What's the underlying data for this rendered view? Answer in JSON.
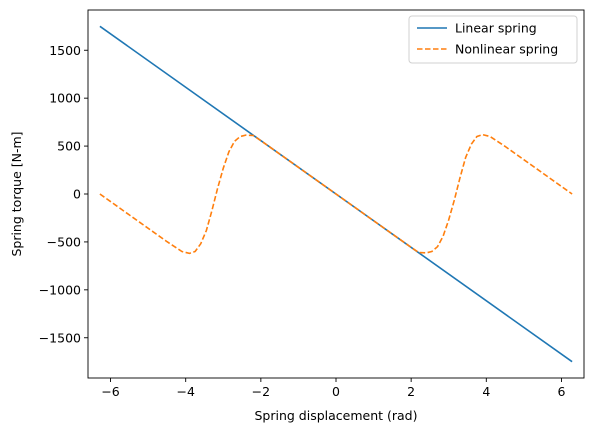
{
  "chart_data": {
    "type": "line",
    "title": "",
    "xlabel": "Spring displacement (rad)",
    "ylabel": "Spring torque [N-m]",
    "xlim": [
      -6.6,
      6.6
    ],
    "ylim": [
      -1920,
      1920
    ],
    "xticks": [
      -6,
      -4,
      -2,
      0,
      2,
      4,
      6
    ],
    "xtick_labels": [
      "−6",
      "−4",
      "−2",
      "0",
      "2",
      "4",
      "6"
    ],
    "yticks": [
      -1500,
      -1000,
      -500,
      0,
      500,
      1000,
      1500
    ],
    "ytick_labels": [
      "−1500",
      "−1000",
      "−500",
      "0",
      "500",
      "1000",
      "1500"
    ],
    "grid": false,
    "legend_position": "top-right",
    "series": [
      {
        "name": "Linear spring",
        "color": "#1f77b4",
        "style": "solid",
        "x": [
          -6.283,
          6.283
        ],
        "y": [
          1750,
          -1750
        ]
      },
      {
        "name": "Nonlinear spring",
        "color": "#ff7f0e",
        "style": "dashed",
        "x": [
          -6.283,
          -5.5,
          -4.5,
          -4.1,
          -3.9,
          -3.75,
          -3.6,
          -3.45,
          -3.3,
          -3.15,
          -3.0,
          -2.85,
          -2.7,
          -2.55,
          -2.4,
          -2.2,
          -2.0,
          -1.0,
          0.0,
          1.0,
          2.0,
          2.2,
          2.4,
          2.55,
          2.7,
          2.85,
          3.0,
          3.15,
          3.3,
          3.45,
          3.6,
          3.75,
          3.9,
          4.1,
          4.5,
          5.5,
          6.283
        ],
        "y": [
          0,
          -218,
          -497,
          -600,
          -620,
          -600,
          -520,
          -380,
          -170,
          60,
          270,
          440,
          550,
          600,
          615,
          610,
          557,
          279,
          0,
          -279,
          -557,
          -610,
          -615,
          -600,
          -550,
          -440,
          -270,
          -60,
          170,
          380,
          520,
          600,
          620,
          600,
          497,
          218,
          0
        ]
      }
    ]
  }
}
